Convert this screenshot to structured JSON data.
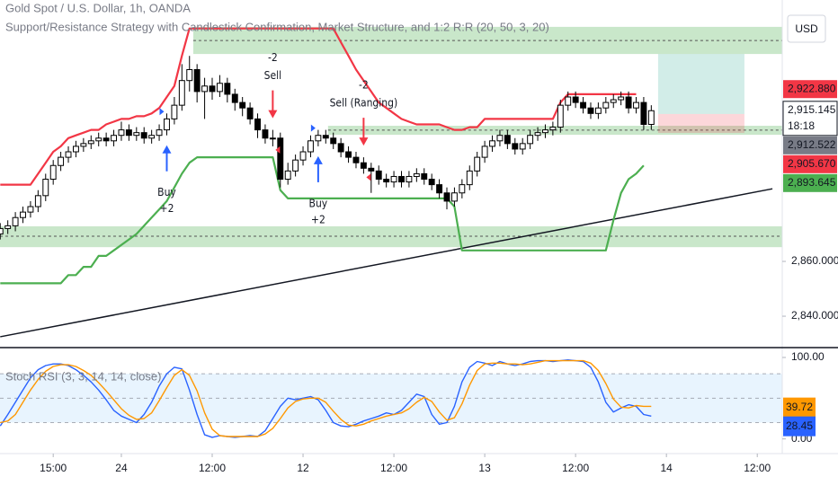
{
  "chart_data": [
    {
      "type": "candlestick",
      "title": "Gold Spot / U.S. Dollar, 1h, OANDA",
      "subtitle": "Support/Resistance Strategy with Candlestick Confirmation, Market Structure, and 1:2 R:R (20, 50, 3, 20)",
      "currency": "USD",
      "x": [
        8,
        9,
        10,
        11,
        12,
        13,
        14,
        15,
        16,
        17,
        18,
        19,
        20,
        21,
        22,
        23,
        24,
        25,
        26,
        27,
        28,
        29,
        30,
        31,
        32,
        33,
        34,
        35,
        36,
        37,
        38,
        39,
        40,
        41,
        42,
        43,
        44,
        45,
        46,
        47,
        48,
        49,
        50,
        51,
        52,
        53,
        54,
        55,
        56,
        57,
        58,
        59,
        60,
        61,
        62,
        63,
        64,
        65,
        66,
        67,
        68,
        69,
        70,
        71,
        72,
        73,
        74,
        75,
        76,
        77,
        78,
        79,
        80,
        81,
        82,
        83,
        84,
        85,
        86,
        87,
        88,
        89,
        90,
        91,
        92,
        93,
        94
      ],
      "open": [
        2870,
        2872,
        2873,
        2876,
        2878,
        2880,
        2884,
        2890,
        2895,
        2898,
        2900,
        2902,
        2903,
        2904,
        2905,
        2904,
        2906,
        2908,
        2906,
        2907,
        2905,
        2906,
        2908,
        2912,
        2917,
        2926,
        2930,
        2922,
        2924,
        2922,
        2925,
        2921,
        2918,
        2916,
        2912,
        2908,
        2905,
        2905,
        2890,
        2893,
        2897,
        2900,
        2904,
        2906,
        2905,
        2903,
        2900,
        2898,
        2896,
        2894,
        2893,
        2890,
        2889,
        2891,
        2889,
        2891,
        2892,
        2890,
        2888,
        2885,
        2882,
        2885,
        2888,
        2893,
        2898,
        2902,
        2904,
        2906,
        2903,
        2901,
        2903,
        2906,
        2907,
        2908,
        2909,
        2917,
        2920,
        2918,
        2916,
        2914,
        2916,
        2918,
        2919,
        2920,
        2916,
        2918,
        2910
      ],
      "high": [
        2874,
        2875,
        2878,
        2880,
        2882,
        2886,
        2892,
        2897,
        2900,
        2902,
        2904,
        2905,
        2906,
        2907,
        2907,
        2908,
        2911,
        2910,
        2909,
        2909,
        2908,
        2910,
        2914,
        2920,
        2932,
        2935,
        2932,
        2927,
        2927,
        2928,
        2927,
        2923,
        2920,
        2918,
        2914,
        2910,
        2908,
        2907,
        2896,
        2899,
        2902,
        2906,
        2908,
        2908,
        2907,
        2905,
        2902,
        2900,
        2898,
        2896,
        2895,
        2892,
        2893,
        2893,
        2893,
        2894,
        2894,
        2892,
        2890,
        2887,
        2887,
        2890,
        2895,
        2900,
        2904,
        2906,
        2908,
        2908,
        2905,
        2905,
        2908,
        2909,
        2910,
        2911,
        2919,
        2922,
        2922,
        2920,
        2918,
        2918,
        2920,
        2921,
        2922,
        2922,
        2920,
        2920,
        2917
      ],
      "low": [
        2868,
        2870,
        2871,
        2874,
        2876,
        2878,
        2882,
        2888,
        2893,
        2896,
        2898,
        2900,
        2901,
        2902,
        2902,
        2902,
        2904,
        2904,
        2904,
        2903,
        2903,
        2904,
        2906,
        2910,
        2915,
        2922,
        2918,
        2912,
        2919,
        2920,
        2918,
        2915,
        2913,
        2910,
        2905,
        2903,
        2902,
        2887,
        2888,
        2891,
        2895,
        2898,
        2902,
        2903,
        2901,
        2898,
        2896,
        2894,
        2892,
        2885,
        2888,
        2887,
        2887,
        2887,
        2887,
        2889,
        2888,
        2886,
        2883,
        2879,
        2880,
        2883,
        2886,
        2891,
        2896,
        2900,
        2902,
        2901,
        2899,
        2899,
        2901,
        2904,
        2905,
        2906,
        2907,
        2915,
        2916,
        2914,
        2912,
        2912,
        2914,
        2916,
        2917,
        2914,
        2914,
        2908,
        2908
      ],
      "close": [
        2872,
        2873,
        2876,
        2878,
        2880,
        2884,
        2890,
        2895,
        2898,
        2900,
        2902,
        2903,
        2904,
        2905,
        2904,
        2906,
        2908,
        2906,
        2907,
        2905,
        2906,
        2908,
        2912,
        2917,
        2926,
        2930,
        2922,
        2924,
        2922,
        2925,
        2921,
        2918,
        2916,
        2912,
        2908,
        2905,
        2905,
        2890,
        2893,
        2897,
        2900,
        2904,
        2906,
        2905,
        2903,
        2900,
        2898,
        2896,
        2894,
        2893,
        2890,
        2889,
        2891,
        2889,
        2891,
        2892,
        2890,
        2888,
        2885,
        2882,
        2885,
        2888,
        2893,
        2898,
        2902,
        2904,
        2906,
        2903,
        2901,
        2903,
        2906,
        2907,
        2908,
        2909,
        2917,
        2920,
        2918,
        2916,
        2914,
        2916,
        2918,
        2919,
        2920,
        2916,
        2918,
        2910,
        2915
      ],
      "up_color": "#ffffff",
      "down_color": "#000000",
      "lines": [
        {
          "color": "#f23645",
          "values": [
            2888,
            2888,
            2888,
            2888,
            2888,
            2892,
            2896,
            2900,
            2902,
            2905,
            2906,
            2907,
            2908,
            2908,
            2910,
            2911,
            2912,
            2912,
            2913,
            2913,
            2914,
            2916,
            2920,
            2924,
            2935,
            2945,
            2945,
            2945,
            2945,
            2945,
            2945,
            2945,
            2945,
            2945,
            2945,
            2945,
            2945,
            2945,
            2945,
            2945,
            2945,
            2945,
            2945,
            2945,
            2945,
            2940,
            2935,
            2930,
            2926,
            2922,
            2918,
            2916,
            2914,
            2912,
            2911,
            2910,
            2910,
            2910,
            2910,
            2909,
            2908,
            2908,
            2909,
            2909,
            2912,
            2912,
            2912,
            2912,
            2912,
            2912,
            2912,
            2912,
            2912,
            2912,
            2918,
            2921,
            2921,
            2921,
            2921,
            2921,
            2921,
            2921,
            2921,
            2921,
            2921,
            null,
            null
          ]
        },
        {
          "color": "#4caf50",
          "values": [
            2852,
            2852,
            2852,
            2852,
            2852,
            2852,
            2852,
            2852,
            2852,
            2855,
            2855,
            2858,
            2858,
            2862,
            2862,
            2864,
            2866,
            2868,
            2870,
            2873,
            2876,
            2879,
            2882,
            2887,
            2892,
            2896,
            2898,
            2898,
            2898,
            2898,
            2898,
            2898,
            2898,
            2898,
            2898,
            2898,
            2898,
            2886,
            2883,
            2883,
            2883,
            2883,
            2883,
            2883,
            2883,
            2883,
            2883,
            2883,
            2883,
            2883,
            2883,
            2883,
            2883,
            2883,
            2883,
            2883,
            2883,
            2883,
            2883,
            2883,
            2880,
            2864,
            2864,
            2864,
            2864,
            2864,
            2864,
            2864,
            2864,
            2864,
            2864,
            2864,
            2864,
            2864,
            2864,
            2864,
            2864,
            2864,
            2864,
            2864,
            2864,
            2875,
            2885,
            2890,
            2892,
            2895,
            null
          ]
        }
      ],
      "trendline": {
        "x": [
          8,
          110
        ],
        "values": [
          2832.5,
          2886.5
        ],
        "color": "#131722"
      },
      "zones": [
        {
          "x": [
            33.5,
            111.3
          ],
          "range": [
            2935.7,
            2945.6
          ],
          "level": 2940.6
        },
        {
          "x": [
            51.3,
            111.3
          ],
          "range": [
            2906.2,
            2909.5
          ],
          "level": 2907.9
        },
        {
          "x": [
            7.97,
            111.3
          ],
          "range": [
            2865.2,
            2872.8
          ],
          "level": 2869.2
        }
      ],
      "zone_color": "#4caf50",
      "position": {
        "x": [
          94.9,
          106.3
        ],
        "target": 2935.7,
        "entry": 2913.8,
        "stop": 2906.9
      },
      "annotations": [
        {
          "text": "Buy",
          "score": "+2",
          "at": 30,
          "kind": "buy"
        },
        {
          "text": "Sell",
          "score": "-2",
          "at": 44,
          "kind": "sell"
        },
        {
          "text": "Buy",
          "score": "+2",
          "at": 50,
          "kind": "buy"
        },
        {
          "text": "Sell (Ranging)",
          "score": "-2",
          "at": 56,
          "kind": "sell"
        }
      ],
      "price_tags": [
        {
          "value": 2922.88,
          "label": "2,922.880",
          "color": "#f23645"
        },
        {
          "value": 2915.145,
          "label": "2,915.145",
          "sub": "18:18",
          "color": "#ffffff"
        },
        {
          "value": 2912.522,
          "label": "2,912.522",
          "color": "#787b86"
        },
        {
          "value": 2905.67,
          "label": "2,905.670",
          "color": "#f23645"
        },
        {
          "value": 2893.645,
          "label": "2,893.645",
          "color": "#4caf50"
        }
      ],
      "xlim": [
        7.97,
        111.3
      ],
      "ylim": [
        2829.2,
        2955.4
      ],
      "xticks": [
        {
          "value": 15,
          "label": "15:00"
        },
        24,
        {
          "value": 36,
          "label": "12:00"
        },
        {
          "value": 48,
          "label": "12"
        },
        {
          "value": 60,
          "label": "12:00"
        },
        {
          "value": 72,
          "label": "13"
        },
        {
          "value": 84,
          "label": "12:00"
        },
        {
          "value": 96,
          "label": "14"
        },
        {
          "value": 108,
          "label": "12:00"
        }
      ],
      "yticks": [
        {
          "value": 2840,
          "label": "2,840.000"
        },
        {
          "value": 2860,
          "label": "2,860.000"
        }
      ]
    },
    {
      "type": "line",
      "title": "Stoch RSI (3, 3, 14, 14, close)",
      "x": [
        8,
        9,
        10,
        11,
        12,
        13,
        14,
        15,
        16,
        17,
        18,
        19,
        20,
        21,
        22,
        23,
        24,
        25,
        26,
        27,
        28,
        29,
        30,
        31,
        32,
        33,
        34,
        35,
        36,
        37,
        38,
        39,
        40,
        41,
        42,
        43,
        44,
        45,
        46,
        47,
        48,
        49,
        50,
        51,
        52,
        53,
        54,
        55,
        56,
        57,
        58,
        59,
        60,
        61,
        62,
        63,
        64,
        65,
        66,
        67,
        68,
        69,
        70,
        71,
        72,
        73,
        74,
        75,
        76,
        77,
        78,
        79,
        80,
        81,
        82,
        83,
        84,
        85,
        86,
        87,
        88,
        89,
        90,
        91,
        92,
        93,
        94
      ],
      "lines": [
        {
          "color": "#2962ff",
          "values": [
            16,
            30,
            45,
            60,
            75,
            85,
            90,
            92,
            92,
            90,
            85,
            78,
            70,
            60,
            48,
            35,
            28,
            24,
            20,
            30,
            45,
            65,
            80,
            88,
            86,
            60,
            30,
            5,
            2,
            4,
            3,
            2,
            3,
            4,
            3,
            10,
            25,
            40,
            50,
            48,
            50,
            52,
            48,
            35,
            20,
            16,
            15,
            18,
            22,
            25,
            28,
            32,
            30,
            35,
            45,
            55,
            52,
            30,
            18,
            20,
            40,
            70,
            88,
            95,
            93,
            90,
            95,
            92,
            90,
            92,
            95,
            96,
            96,
            95,
            96,
            97,
            96,
            95,
            88,
            70,
            45,
            33,
            38,
            42,
            40,
            30,
            28
          ]
        },
        {
          "color": "#ff9800",
          "values": [
            20,
            22,
            30,
            45,
            60,
            73,
            83,
            89,
            91,
            91,
            89,
            84,
            78,
            69,
            59,
            48,
            37,
            29,
            24,
            25,
            32,
            47,
            63,
            78,
            85,
            78,
            59,
            32,
            12,
            4,
            3,
            3,
            3,
            3,
            3,
            6,
            13,
            25,
            38,
            46,
            49,
            50,
            50,
            45,
            34,
            24,
            17,
            16,
            18,
            22,
            25,
            28,
            30,
            32,
            37,
            45,
            51,
            46,
            33,
            23,
            26,
            43,
            66,
            84,
            92,
            93,
            93,
            92,
            92,
            91,
            92,
            94,
            96,
            96,
            96,
            96,
            96,
            96,
            93,
            84,
            68,
            49,
            39,
            38,
            41,
            40,
            40
          ]
        }
      ],
      "band": [
        20,
        80
      ],
      "midline": 50,
      "band_color": "#2196f3",
      "value_tags": [
        {
          "value": 39.72,
          "color": "#ff9800"
        },
        {
          "value": 28.45,
          "color": "#2962ff"
        }
      ],
      "xlim": [
        7.97,
        111.3
      ],
      "ylim": [
        -18,
        111
      ],
      "yticks": [
        {
          "value": 100,
          "label": "100.00"
        },
        {
          "value": 0,
          "label": "0.00"
        }
      ]
    }
  ]
}
